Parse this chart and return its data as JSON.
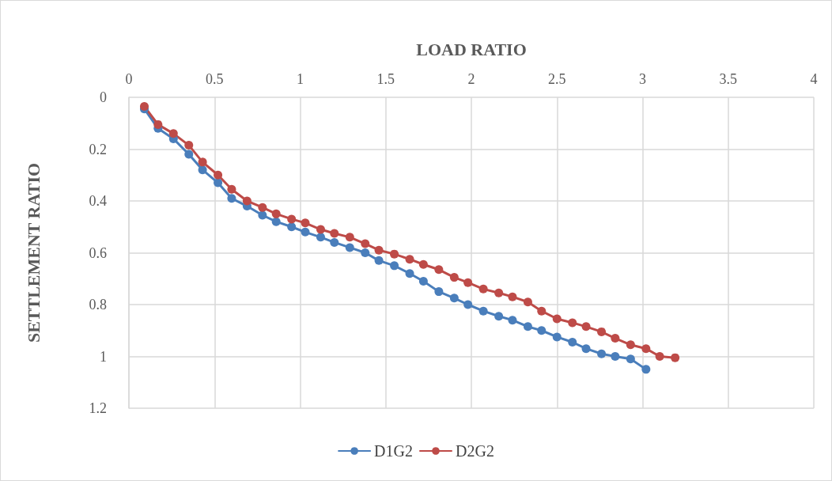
{
  "chart_data": {
    "type": "line",
    "xlabel": "LOAD RATIO",
    "ylabel": "SETTLEMENT RATIO",
    "x": [
      0.09,
      0.17,
      0.26,
      0.35,
      0.43,
      0.52,
      0.6,
      0.69,
      0.78,
      0.86,
      0.95,
      1.03,
      1.12,
      1.2,
      1.29,
      1.38,
      1.46,
      1.55,
      1.64,
      1.72,
      1.81,
      1.9,
      1.98,
      2.07,
      2.16,
      2.24,
      2.33,
      2.41,
      2.5,
      2.59,
      2.67,
      2.76,
      2.84,
      2.93,
      3.02,
      3.1,
      3.19
    ],
    "series": [
      {
        "name": "D1G2",
        "color": "#4a7ebb",
        "values": [
          0.045,
          0.12,
          0.16,
          0.22,
          0.28,
          0.33,
          0.39,
          0.42,
          0.455,
          0.48,
          0.5,
          0.52,
          0.54,
          0.56,
          0.58,
          0.6,
          0.63,
          0.65,
          0.68,
          0.71,
          0.75,
          0.775,
          0.8,
          0.825,
          0.845,
          0.86,
          0.885,
          0.9,
          0.925,
          0.945,
          0.97,
          0.99,
          1.0,
          1.01,
          1.05,
          null,
          null
        ]
      },
      {
        "name": "D2G2",
        "color": "#be4b48",
        "values": [
          0.035,
          0.105,
          0.14,
          0.185,
          0.25,
          0.3,
          0.355,
          0.4,
          0.425,
          0.45,
          0.47,
          0.485,
          0.51,
          0.525,
          0.54,
          0.565,
          0.59,
          0.605,
          0.625,
          0.645,
          0.665,
          0.695,
          0.715,
          0.74,
          0.755,
          0.77,
          0.79,
          0.825,
          0.855,
          0.87,
          0.885,
          0.905,
          0.93,
          0.955,
          0.97,
          1.0,
          1.005
        ]
      }
    ],
    "xlim": [
      0,
      4
    ],
    "xticks": [
      0,
      0.5,
      1,
      1.5,
      2,
      2.5,
      3,
      3.5,
      4
    ],
    "ylim": [
      1.2,
      0
    ],
    "yticks": [
      0,
      0.2,
      0.4,
      0.6,
      0.8,
      1,
      1.2
    ],
    "grid": true,
    "legend": "bottom",
    "marker": "circle",
    "line_style": "solid"
  }
}
